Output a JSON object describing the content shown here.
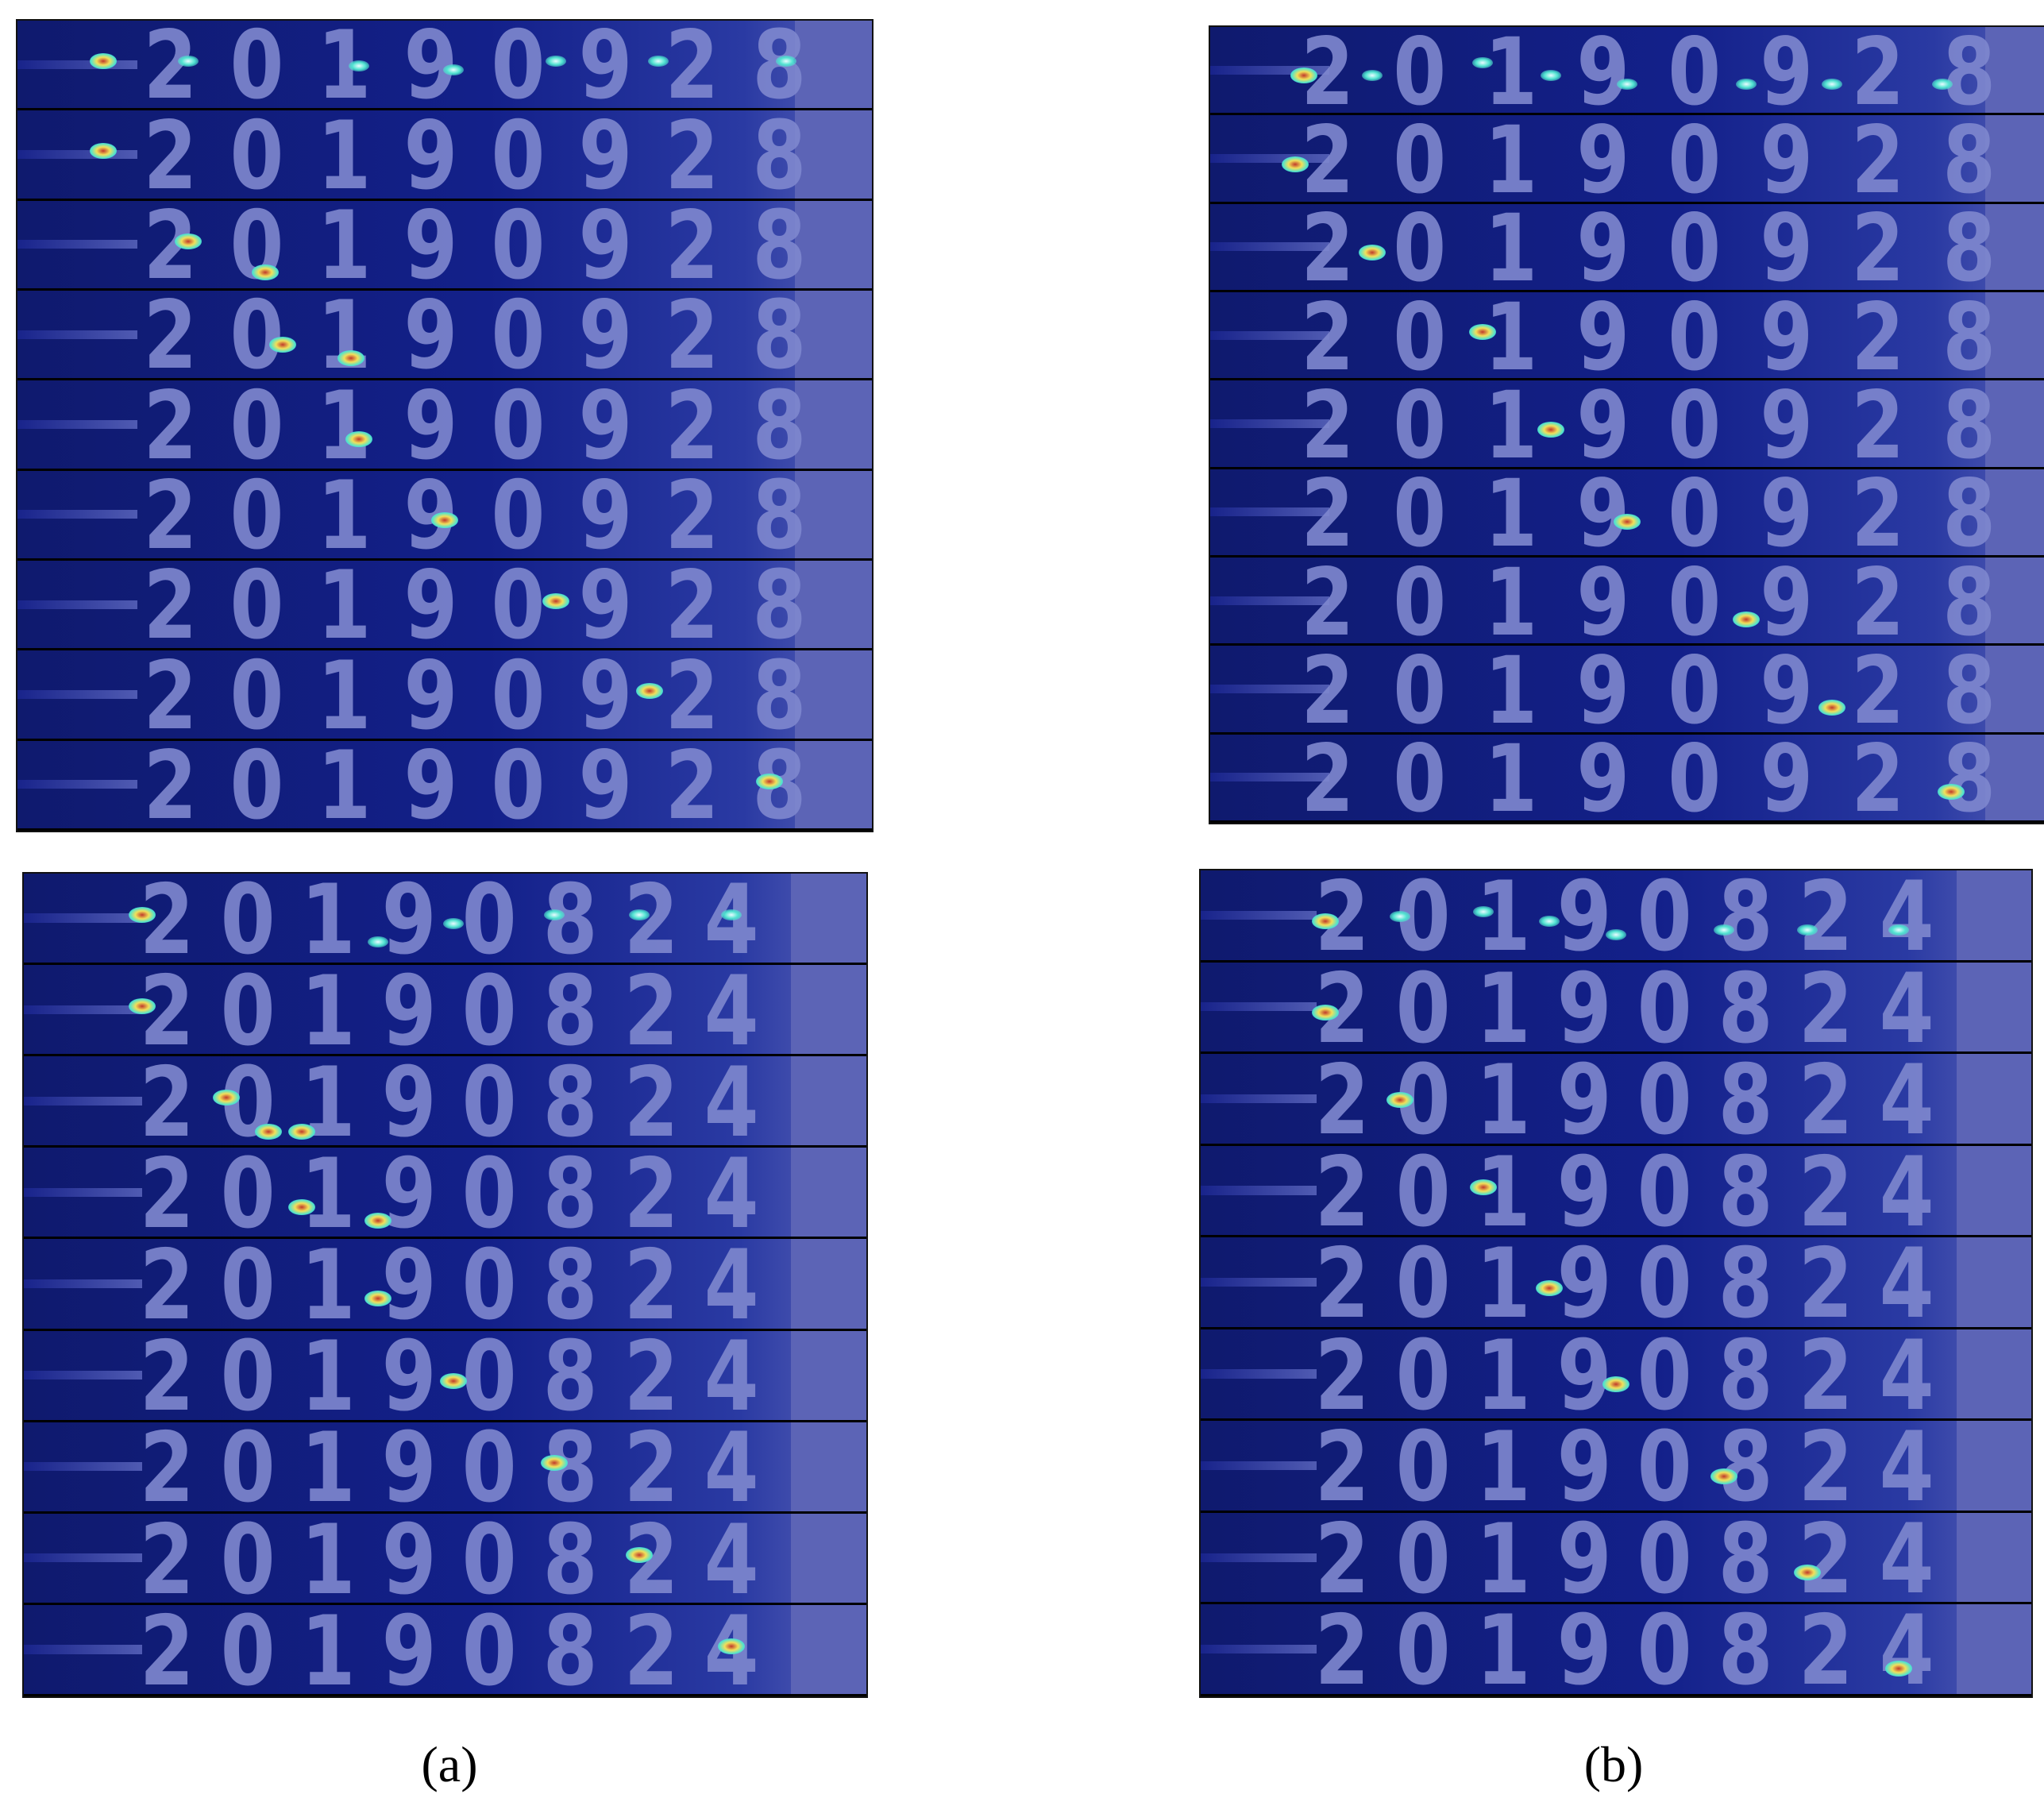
{
  "panels": [
    {
      "id": "panel-a-top",
      "digits": [
        "2",
        "0",
        "1",
        "9",
        "0",
        "9",
        "2",
        "8"
      ],
      "rows": 9
    },
    {
      "id": "panel-b-top",
      "digits": [
        "2",
        "0",
        "1",
        "9",
        "0",
        "9",
        "2",
        "8"
      ],
      "rows": 9
    },
    {
      "id": "panel-a-bot",
      "digits": [
        "2",
        "0",
        "1",
        "9",
        "0",
        "8",
        "2",
        "4"
      ],
      "rows": 9
    },
    {
      "id": "panel-b-bot",
      "digits": [
        "2",
        "0",
        "1",
        "9",
        "0",
        "8",
        "2",
        "4"
      ],
      "rows": 9
    }
  ],
  "captions": {
    "a": "(a)",
    "b": "(b)"
  },
  "colors": {
    "background_deep": "#0f1a6e",
    "digit_overlay": "#7f88cf",
    "hotspot_core": "#c0392b",
    "hotspot_mid": "#f1e05a",
    "hotspot_outer": "#4fe3d0"
  }
}
